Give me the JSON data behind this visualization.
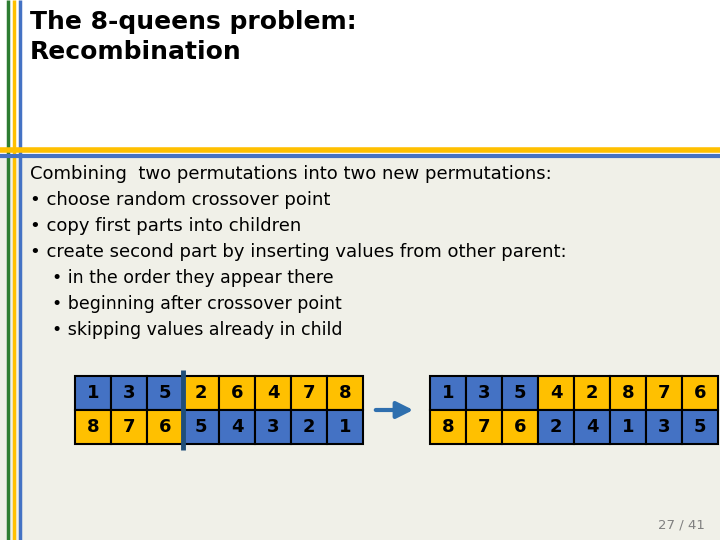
{
  "title_line1": "The 8-queens problem:",
  "title_line2": "Recombination",
  "slide_number": "27 / 41",
  "bg_color": "#ffffff",
  "body_bg_color": "#f0f0e8",
  "blue_color": "#4472C4",
  "yellow_color": "#FFC000",
  "crossover_line_color": "#1F4E79",
  "arrow_color": "#2F6FAE",
  "parent1": [
    1,
    3,
    5,
    2,
    6,
    4,
    7,
    8
  ],
  "parent2": [
    8,
    7,
    6,
    5,
    4,
    3,
    2,
    1
  ],
  "child1": [
    1,
    3,
    5,
    4,
    2,
    8,
    7,
    6
  ],
  "child2": [
    8,
    7,
    6,
    2,
    4,
    1,
    3,
    5
  ],
  "crossover_after": 2,
  "title_color": "#000000",
  "text_color": "#000000",
  "left_border_blue": "#4472C4",
  "left_border_green": "#2E7D32",
  "left_border_yellow": "#FFC000",
  "sep_yellow": "#FFC000",
  "sep_blue": "#4472C4",
  "body_lines": [
    "Combining  two permutations into two new permutations:",
    "• choose random crossover point",
    "• copy first parts into children",
    "• create second part by inserting values from other parent:",
    "    • in the order they appear there",
    "    • beginning after crossover point",
    "    • skipping values already in child"
  ]
}
